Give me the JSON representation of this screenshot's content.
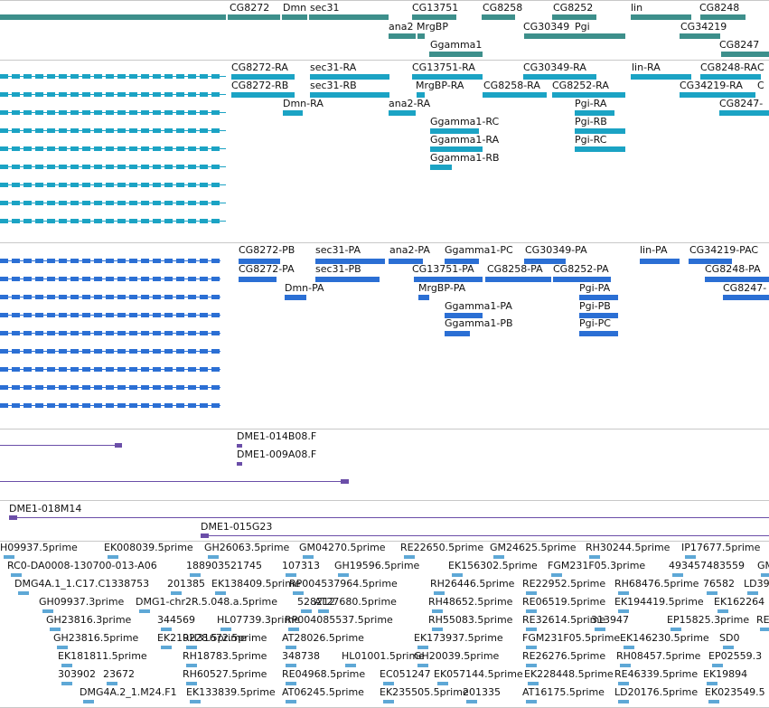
{
  "colors": {
    "gene": "#3d8f8b",
    "transcript": "#1ba3c4",
    "protein": "#2b6fd4",
    "clone": "#6b4ea8",
    "est": "#5ea8d6"
  },
  "gene_track": [
    "CG8272",
    "Dmn",
    "sec31",
    "CG13751",
    "CG8258",
    "CG8252",
    "lin",
    "CG8248",
    "ana2",
    "MrgBP",
    "CG30349",
    "Pgi",
    "CG34219",
    "Ggamma1",
    "CG8247"
  ],
  "transcript_track": [
    "CG8272-RA",
    "sec31-RA",
    "CG13751-RA",
    "CG30349-RA",
    "lin-RA",
    "CG8248-RA",
    "C",
    "CG8272-RB",
    "sec31-RB",
    "MrgBP-RA",
    "CG8258-RA",
    "CG8252-RA",
    "CG34219-RA",
    "C",
    "Dmn-RA",
    "ana2-RA",
    "Pgi-RA",
    "CG8247-",
    "Ggamma1-RC",
    "Pgi-RB",
    "Ggamma1-RA",
    "Pgi-RC",
    "Ggamma1-RB"
  ],
  "protein_track": [
    "CG8272-PB",
    "sec31-PA",
    "ana2-PA",
    "Ggamma1-PC",
    "CG30349-PA",
    "lin-PA",
    "CG34219-PAC",
    "CG8272-PA",
    "sec31-PB",
    "CG13751-PA",
    "CG8258-PA",
    "CG8252-PA",
    "CG8248-PA",
    "Dmn-PA",
    "MrgBP-PA",
    "Pgi-PA",
    "CG8247-",
    "Ggamma1-PA",
    "Pgi-PB",
    "Ggamma1-PB",
    "Pgi-PC"
  ],
  "clone_track": [
    "DME1-014B08.F",
    "DME1-009A08.F"
  ],
  "bac_track": [
    "DME1-018M14",
    "DME1-015G23"
  ],
  "est_track": [
    "H09937.5prime",
    "EK008039.5prime",
    "GH26063.5prime",
    "GM04270.5prime",
    "RE22650.5prime",
    "GM24625.5prime",
    "RH30244.5prime",
    "IP17677.5prime",
    "RC0-DA0008-130700-013-A06",
    "188903521745",
    "107313",
    "GH19596.5prime",
    "EK156302.5prime",
    "FGM231F05.3prime",
    "493457483559",
    "GM",
    "DMG4A.1_1.C17.C1338753",
    "201385",
    "EK138409.5prime",
    "RP004537964.5prime",
    "RH26446.5prime",
    "RE22952.5prime",
    "RH68476.5prime",
    "76582",
    "LD39",
    "GH09937.3prime",
    "DMG1-chr2R.5.048.a.5prime",
    "528212",
    "AT27680.5prime",
    "RH48652.5prime",
    "RE06519.5prime",
    "EK194419.5prime",
    "EK162264",
    "GH23816.3prime",
    "344569",
    "HL07739.3prime",
    "RP004085537.5prime",
    "RH55083.5prime",
    "RE32614.5prime",
    "313947",
    "EP15825.3prime",
    "RE",
    "GH23816.5prime",
    "EK219228.5prime",
    "RH31672.5prime",
    "AT28026.5prime",
    "EK173937.5prime",
    "FGM231F05.5prime",
    "EK146230.5prime",
    "SD0",
    "EK181811.5prime",
    "RH18783.5prime",
    "348738",
    "HL01001.5prime",
    "GH20039.5prime",
    "RE26276.5prime",
    "RH08457.5prime",
    "EP02559.3",
    "303902",
    "23672",
    "RH60527.5prime",
    "RE04968.5prime",
    "EC051247",
    "EK057144.5prime",
    "EK228448.5prime",
    "RE46339.5prime",
    "EK19894",
    "DMG4A.2_1.M24.F1",
    "EK133839.5prime",
    "AT06245.5prime",
    "EK235505.5prime",
    "201335",
    "AT16175.5prime",
    "LD20176.5prime",
    "EK023549.5"
  ]
}
